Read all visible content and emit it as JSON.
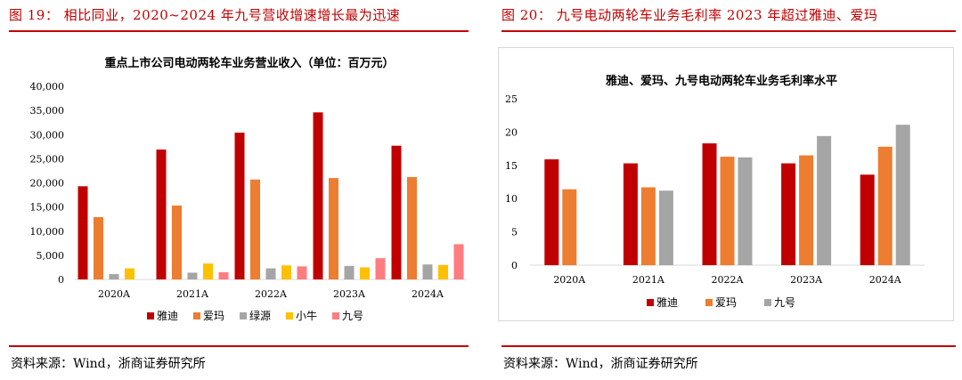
{
  "figures": [
    {
      "caption": "图 19：  相比同业，2020~2024 年九号营收增速增长最为迅速",
      "source": "资料来源：Wind，浙商证券研究所"
    },
    {
      "caption": "图 20：  九号电动两轮车业务毛利率 2023 年超过雅迪、爱玛",
      "source": "资料来源：Wind，浙商证券研究所"
    }
  ],
  "chart_data": [
    {
      "type": "bar",
      "title": "重点上市公司电动两轮车业务营业收入（单位：百万元）",
      "xlabel": "",
      "ylabel": "",
      "categories": [
        "2020A",
        "2021A",
        "2022A",
        "2023A",
        "2024A"
      ],
      "ylim": [
        0,
        40000
      ],
      "yticks": [
        "0",
        "5,000",
        "10,000",
        "15,000",
        "20,000",
        "25,000",
        "30,000",
        "35,000",
        "40,000"
      ],
      "grid": false,
      "legend_position": "bottom",
      "series": [
        {
          "name": "雅迪",
          "color": "#c00000",
          "values": [
            19300,
            26900,
            30400,
            34600,
            27700
          ]
        },
        {
          "name": "爱玛",
          "color": "#ed7d31",
          "values": [
            12900,
            15300,
            20700,
            21000,
            21200
          ]
        },
        {
          "name": "绿源",
          "color": "#a5a5a5",
          "values": [
            1100,
            1400,
            2300,
            2800,
            3100
          ]
        },
        {
          "name": "小牛",
          "color": "#ffc000",
          "values": [
            2300,
            3300,
            2900,
            2500,
            3000
          ]
        },
        {
          "name": "九号",
          "color": "#ff7c80",
          "values": [
            null,
            1500,
            2700,
            4400,
            7300
          ]
        }
      ]
    },
    {
      "type": "bar",
      "title": "雅迪、爱玛、九号电动两轮车业务毛利率水平",
      "xlabel": "",
      "ylabel": "",
      "categories": [
        "2020A",
        "2021A",
        "2022A",
        "2023A",
        "2024A"
      ],
      "ylim": [
        0,
        25
      ],
      "yticks": [
        "0",
        "5",
        "10",
        "15",
        "20",
        "25"
      ],
      "grid": false,
      "legend_position": "bottom",
      "series": [
        {
          "name": "雅迪",
          "color": "#c00000",
          "values": [
            15.9,
            15.3,
            18.3,
            15.3,
            13.6
          ]
        },
        {
          "name": "爱玛",
          "color": "#ed7d31",
          "values": [
            11.4,
            11.7,
            16.3,
            16.5,
            17.8
          ]
        },
        {
          "name": "九号",
          "color": "#a5a5a5",
          "values": [
            null,
            11.2,
            16.2,
            19.4,
            21.1
          ]
        }
      ]
    }
  ]
}
